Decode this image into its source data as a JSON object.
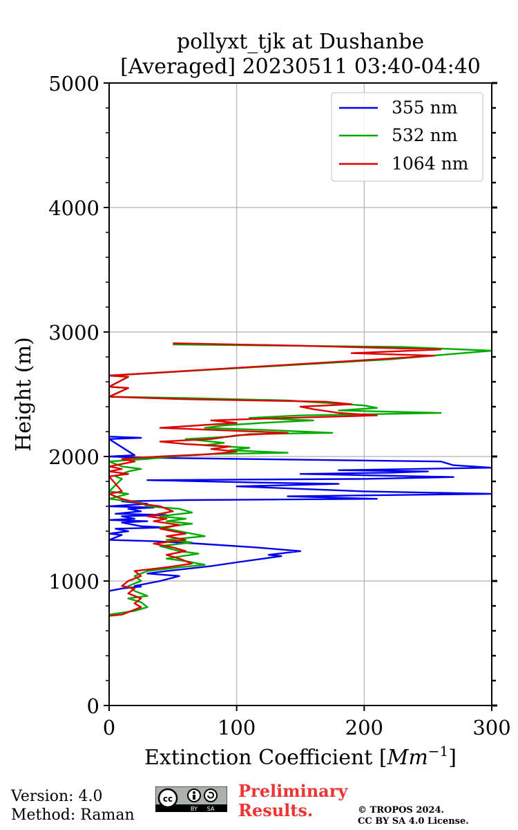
{
  "chart_data": {
    "type": "line",
    "title_line1": "pollyxt_tjk at Dushanbe",
    "title_line2": "[Averaged] 20230511 03:40-04:40",
    "xlabel": "Extinction Coefficient [",
    "xlabel_unit": "Mm",
    "xlabel_exp": "−1",
    "xlabel_end": "]",
    "ylabel": "Height (m)",
    "xlim": [
      0,
      300
    ],
    "ylim": [
      0,
      5000
    ],
    "xticks": [
      0,
      100,
      200,
      300
    ],
    "xtick_labels": [
      "0",
      "100",
      "200",
      "300"
    ],
    "yticks": [
      0,
      1000,
      2000,
      3000,
      4000,
      5000
    ],
    "ytick_labels": [
      "0",
      "1000",
      "2000",
      "3000",
      "4000",
      "5000"
    ],
    "grid": true,
    "legend_position": "top-right",
    "series": [
      {
        "name": "355 nm",
        "color": "#0000ee",
        "points": [
          [
            0,
            920
          ],
          [
            10,
            940
          ],
          [
            25,
            955
          ],
          [
            20,
            960
          ],
          [
            40,
            1000
          ],
          [
            55,
            1040
          ],
          [
            30,
            1060
          ],
          [
            45,
            1080
          ],
          [
            80,
            1120
          ],
          [
            100,
            1150
          ],
          [
            135,
            1200
          ],
          [
            125,
            1210
          ],
          [
            150,
            1240
          ],
          [
            115,
            1270
          ],
          [
            70,
            1300
          ],
          [
            35,
            1320
          ],
          [
            0,
            1330
          ],
          [
            10,
            1370
          ],
          [
            0,
            1380
          ],
          [
            15,
            1400
          ],
          [
            5,
            1420
          ],
          [
            45,
            1430
          ],
          [
            25,
            1440
          ],
          [
            10,
            1470
          ],
          [
            30,
            1480
          ],
          [
            0,
            1490
          ],
          [
            20,
            1500
          ],
          [
            10,
            1520
          ],
          [
            45,
            1530
          ],
          [
            5,
            1540
          ],
          [
            25,
            1560
          ],
          [
            15,
            1580
          ],
          [
            35,
            1590
          ],
          [
            0,
            1600
          ],
          [
            30,
            1620
          ],
          [
            10,
            1640
          ],
          [
            60,
            1650
          ],
          [
            210,
            1660
          ],
          [
            140,
            1680
          ],
          [
            300,
            1700
          ],
          [
            200,
            1720
          ],
          [
            100,
            1760
          ],
          [
            180,
            1780
          ],
          [
            120,
            1790
          ],
          [
            30,
            1810
          ],
          [
            200,
            1820
          ],
          [
            270,
            1835
          ],
          [
            150,
            1860
          ],
          [
            220,
            1870
          ],
          [
            250,
            1880
          ],
          [
            180,
            1890
          ],
          [
            300,
            1910
          ],
          [
            270,
            1930
          ],
          [
            260,
            1960
          ],
          [
            30,
            1990
          ],
          [
            0,
            2000
          ],
          [
            20,
            2010
          ],
          [
            0,
            2140
          ],
          [
            25,
            2150
          ],
          [
            0,
            2160
          ]
        ]
      },
      {
        "name": "532 nm",
        "color": "#00aa00",
        "points": [
          [
            0,
            730
          ],
          [
            20,
            760
          ],
          [
            30,
            790
          ],
          [
            25,
            830
          ],
          [
            15,
            860
          ],
          [
            30,
            880
          ],
          [
            20,
            920
          ],
          [
            15,
            960
          ],
          [
            25,
            1000
          ],
          [
            20,
            1040
          ],
          [
            30,
            1080
          ],
          [
            55,
            1110
          ],
          [
            75,
            1130
          ],
          [
            60,
            1160
          ],
          [
            45,
            1180
          ],
          [
            70,
            1220
          ],
          [
            55,
            1240
          ],
          [
            40,
            1280
          ],
          [
            65,
            1310
          ],
          [
            45,
            1330
          ],
          [
            75,
            1360
          ],
          [
            55,
            1400
          ],
          [
            40,
            1430
          ],
          [
            65,
            1460
          ],
          [
            45,
            1480
          ],
          [
            60,
            1500
          ],
          [
            40,
            1520
          ],
          [
            65,
            1550
          ],
          [
            55,
            1580
          ],
          [
            30,
            1600
          ],
          [
            25,
            1630
          ],
          [
            0,
            1660
          ],
          [
            15,
            1700
          ],
          [
            0,
            1720
          ],
          [
            10,
            1820
          ],
          [
            5,
            1840
          ],
          [
            15,
            1880
          ],
          [
            25,
            1900
          ],
          [
            10,
            1920
          ],
          [
            0,
            1960
          ],
          [
            30,
            1980
          ],
          [
            50,
            2000
          ],
          [
            80,
            2020
          ],
          [
            140,
            2030
          ],
          [
            95,
            2050
          ],
          [
            110,
            2070
          ],
          [
            75,
            2090
          ],
          [
            90,
            2110
          ],
          [
            60,
            2140
          ],
          [
            95,
            2160
          ],
          [
            110,
            2180
          ],
          [
            175,
            2190
          ],
          [
            130,
            2210
          ],
          [
            75,
            2230
          ],
          [
            90,
            2250
          ],
          [
            120,
            2270
          ],
          [
            160,
            2290
          ],
          [
            110,
            2310
          ],
          [
            150,
            2330
          ],
          [
            260,
            2350
          ],
          [
            180,
            2370
          ],
          [
            210,
            2390
          ],
          [
            200,
            2410
          ],
          [
            170,
            2430
          ],
          [
            140,
            2450
          ],
          [
            60,
            2470
          ],
          [
            0,
            2480
          ],
          [
            15,
            2550
          ],
          [
            0,
            2560
          ],
          [
            15,
            2640
          ],
          [
            0,
            2650
          ],
          [
            220,
            2780
          ],
          [
            265,
            2820
          ],
          [
            300,
            2850
          ],
          [
            230,
            2880
          ],
          [
            50,
            2900
          ]
        ]
      },
      {
        "name": "1064 nm",
        "color": "#dd0000",
        "points": [
          [
            0,
            720
          ],
          [
            10,
            730
          ],
          [
            25,
            790
          ],
          [
            20,
            820
          ],
          [
            25,
            860
          ],
          [
            15,
            900
          ],
          [
            20,
            940
          ],
          [
            10,
            960
          ],
          [
            15,
            1000
          ],
          [
            25,
            1040
          ],
          [
            20,
            1080
          ],
          [
            45,
            1110
          ],
          [
            65,
            1140
          ],
          [
            55,
            1180
          ],
          [
            45,
            1210
          ],
          [
            60,
            1240
          ],
          [
            50,
            1270
          ],
          [
            35,
            1300
          ],
          [
            60,
            1330
          ],
          [
            45,
            1360
          ],
          [
            60,
            1380
          ],
          [
            40,
            1420
          ],
          [
            55,
            1450
          ],
          [
            35,
            1480
          ],
          [
            45,
            1500
          ],
          [
            30,
            1520
          ],
          [
            50,
            1560
          ],
          [
            40,
            1600
          ],
          [
            25,
            1620
          ],
          [
            10,
            1660
          ],
          [
            0,
            1700
          ],
          [
            10,
            1720
          ],
          [
            0,
            1840
          ],
          [
            15,
            1860
          ],
          [
            0,
            1880
          ],
          [
            10,
            1900
          ],
          [
            0,
            1920
          ],
          [
            20,
            1960
          ],
          [
            10,
            1980
          ],
          [
            40,
            2000
          ],
          [
            80,
            2020
          ],
          [
            100,
            2040
          ],
          [
            80,
            2060
          ],
          [
            95,
            2080
          ],
          [
            60,
            2100
          ],
          [
            40,
            2120
          ],
          [
            80,
            2140
          ],
          [
            100,
            2170
          ],
          [
            140,
            2190
          ],
          [
            90,
            2210
          ],
          [
            40,
            2230
          ],
          [
            70,
            2250
          ],
          [
            100,
            2270
          ],
          [
            80,
            2290
          ],
          [
            140,
            2310
          ],
          [
            210,
            2330
          ],
          [
            180,
            2350
          ],
          [
            160,
            2380
          ],
          [
            150,
            2400
          ],
          [
            190,
            2420
          ],
          [
            170,
            2440
          ],
          [
            60,
            2460
          ],
          [
            0,
            2480
          ],
          [
            15,
            2550
          ],
          [
            0,
            2560
          ],
          [
            15,
            2640
          ],
          [
            0,
            2650
          ],
          [
            210,
            2780
          ],
          [
            255,
            2810
          ],
          [
            190,
            2830
          ],
          [
            260,
            2860
          ],
          [
            150,
            2890
          ],
          [
            50,
            2910
          ]
        ]
      }
    ]
  },
  "footer": {
    "version": "Version: 4.0",
    "method": "Method: Raman",
    "preliminary_line1": "Preliminary",
    "preliminary_line2": "Results.",
    "copyright_line1": "© TROPOS 2024.",
    "copyright_line2": "CC BY SA 4.0 License.",
    "license_badge_by": "BY",
    "license_badge_sa": "SA"
  }
}
